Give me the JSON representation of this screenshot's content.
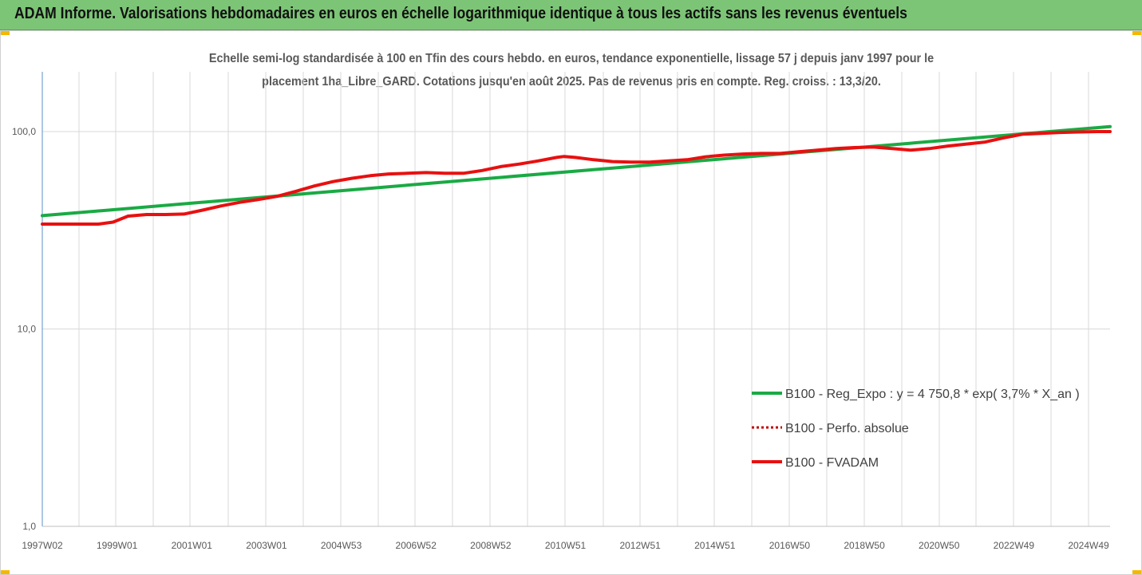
{
  "header": {
    "title": "ADAM Informe. Valorisations hebdomadaires en euros en échelle logarithmique identique à tous les actifs sans les revenus éventuels"
  },
  "colors": {
    "header_bg": "#7cc576",
    "corner_accent": "#f5b800",
    "regression": "#1aaa44",
    "fvadam": "#e81010",
    "perfo": "#c00000",
    "grid": "#d9d9d9",
    "axis": "#5b8fc9"
  },
  "chart_data": {
    "type": "line",
    "title_lines": [
      "Echelle semi-log standardisée à 100 en Tfin des cours hebdo. en euros, tendance exponentielle, lissage 57 j depuis janv 1997 pour le",
      "placement 1ha_Libre_GARD. Cotations jusqu'en août 2025. Pas de revenus pris en compte. Reg. croiss. : 13,3/20."
    ],
    "y_scale": "log",
    "ylim": [
      1,
      200
    ],
    "y_ticks": [
      {
        "value": 1,
        "label": "1,0"
      },
      {
        "value": 10,
        "label": "10,0"
      },
      {
        "value": 100,
        "label": "100,0"
      }
    ],
    "x_range": [
      1997.0,
      2025.65
    ],
    "x_tick_labels": [
      "1997W02",
      "1999W01",
      "2001W01",
      "2003W01",
      "2004W53",
      "2006W52",
      "2008W52",
      "2010W51",
      "2012W51",
      "2014W51",
      "2016W50",
      "2018W50",
      "2020W50",
      "2022W49",
      "2024W49"
    ],
    "grid": "vertical",
    "legend_position": "lower-right",
    "series": [
      {
        "name": "B100 - Reg_Expo : y = 4 750,8 * exp( 3,7% *  X_an )",
        "style": "solid",
        "points": [
          [
            1997.0,
            37.5
          ],
          [
            2025.65,
            106.0
          ]
        ]
      },
      {
        "name": "B100 - Perfo. absolue",
        "style": "dotted",
        "points": []
      },
      {
        "name": "B100 - FVADAM",
        "style": "solid",
        "points": [
          [
            1997.0,
            34.0
          ],
          [
            1997.5,
            34.0
          ],
          [
            1998.0,
            34.0
          ],
          [
            1998.5,
            34.0
          ],
          [
            1998.9,
            34.8
          ],
          [
            1999.3,
            37.3
          ],
          [
            1999.8,
            38.0
          ],
          [
            2000.3,
            38.0
          ],
          [
            2000.8,
            38.2
          ],
          [
            2001.3,
            40.0
          ],
          [
            2001.8,
            42.0
          ],
          [
            2002.3,
            43.8
          ],
          [
            2002.8,
            45.3
          ],
          [
            2003.3,
            47.0
          ],
          [
            2003.8,
            49.8
          ],
          [
            2004.3,
            53.0
          ],
          [
            2004.8,
            55.8
          ],
          [
            2005.3,
            58.0
          ],
          [
            2005.8,
            59.8
          ],
          [
            2006.3,
            61.0
          ],
          [
            2006.8,
            61.5
          ],
          [
            2007.3,
            62.0
          ],
          [
            2007.8,
            61.5
          ],
          [
            2008.3,
            61.5
          ],
          [
            2008.8,
            63.5
          ],
          [
            2009.3,
            66.5
          ],
          [
            2009.8,
            68.5
          ],
          [
            2010.3,
            71.0
          ],
          [
            2010.8,
            74.0
          ],
          [
            2011.0,
            74.8
          ],
          [
            2011.3,
            74.0
          ],
          [
            2011.8,
            72.0
          ],
          [
            2012.3,
            70.5
          ],
          [
            2012.8,
            70.0
          ],
          [
            2013.3,
            70.0
          ],
          [
            2013.8,
            71.0
          ],
          [
            2014.3,
            72.0
          ],
          [
            2014.8,
            74.5
          ],
          [
            2015.3,
            76.0
          ],
          [
            2015.8,
            77.0
          ],
          [
            2016.3,
            77.5
          ],
          [
            2016.8,
            77.5
          ],
          [
            2017.3,
            79.0
          ],
          [
            2017.8,
            80.5
          ],
          [
            2018.3,
            82.0
          ],
          [
            2018.8,
            83.0
          ],
          [
            2019.3,
            83.5
          ],
          [
            2019.8,
            82.0
          ],
          [
            2020.3,
            80.5
          ],
          [
            2020.8,
            82.0
          ],
          [
            2021.3,
            84.5
          ],
          [
            2021.8,
            86.5
          ],
          [
            2022.3,
            88.5
          ],
          [
            2022.8,
            93.0
          ],
          [
            2023.3,
            97.0
          ],
          [
            2023.8,
            98.0
          ],
          [
            2024.3,
            99.0
          ],
          [
            2024.8,
            99.5
          ],
          [
            2025.3,
            100.0
          ],
          [
            2025.65,
            100.0
          ]
        ]
      }
    ]
  }
}
